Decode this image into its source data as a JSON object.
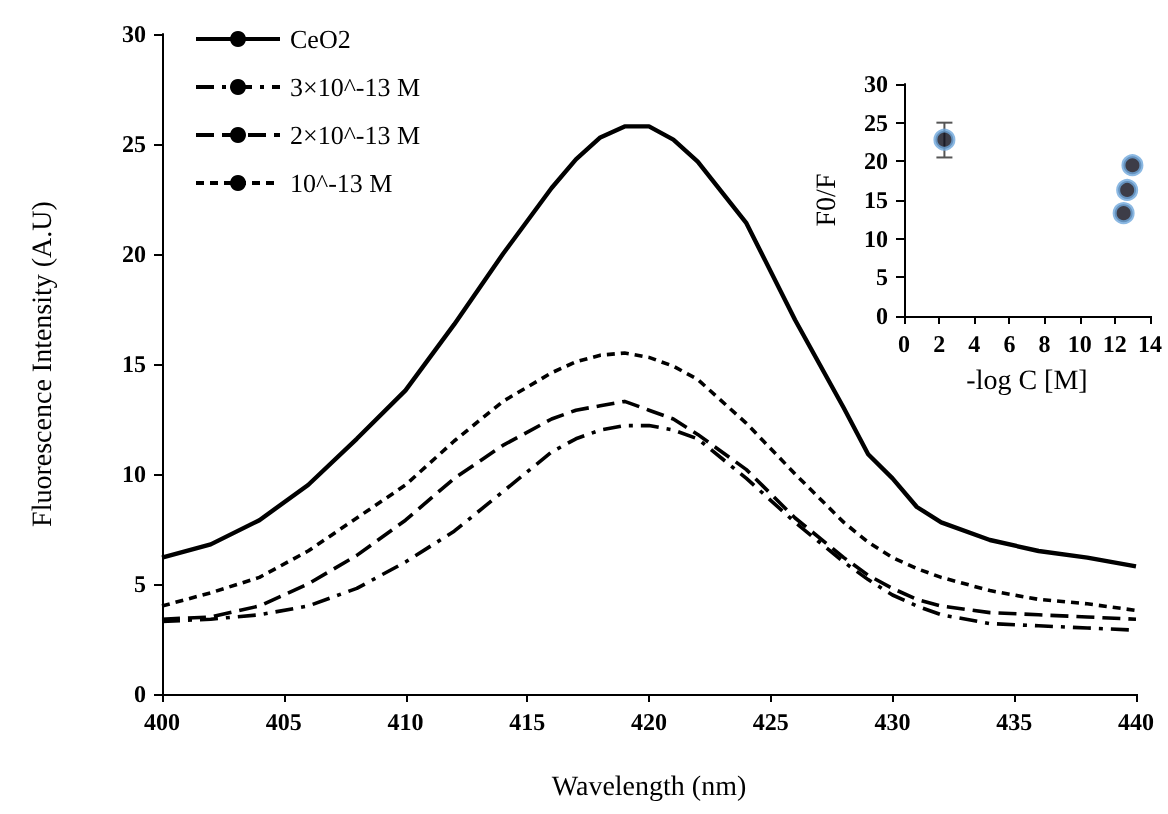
{
  "chart_data": [
    {
      "type": "line",
      "xlabel": "Wavelength (nm)",
      "ylabel": "Fluorescence Intensity (A.U)",
      "xlim": [
        400,
        440
      ],
      "xticks": [
        400,
        405,
        410,
        415,
        420,
        425,
        430,
        435,
        440
      ],
      "ylim": [
        0,
        30
      ],
      "yticks": [
        0,
        5,
        10,
        15,
        20,
        25,
        30
      ],
      "x": [
        400,
        402,
        404,
        406,
        408,
        410,
        412,
        414,
        416,
        417,
        418,
        419,
        420,
        421,
        422,
        424,
        426,
        428,
        429,
        430,
        431,
        432,
        434,
        436,
        438,
        440
      ],
      "series": [
        {
          "name": "CeO2",
          "color": "#000000",
          "line_style": "solid",
          "values": [
            6.2,
            6.8,
            7.9,
            9.5,
            11.6,
            13.8,
            16.8,
            20.0,
            23.0,
            24.3,
            25.3,
            25.8,
            25.8,
            25.2,
            24.2,
            21.4,
            17.0,
            13.0,
            10.9,
            9.8,
            8.5,
            7.8,
            7.0,
            6.5,
            6.2,
            5.8
          ]
        },
        {
          "name": "3×10^-13 M",
          "color": "#000000",
          "line_style": "dashdot",
          "values": [
            3.3,
            3.4,
            3.6,
            4.0,
            4.8,
            6.0,
            7.4,
            9.2,
            11.0,
            11.6,
            12.0,
            12.2,
            12.2,
            12.0,
            11.6,
            9.8,
            7.8,
            6.0,
            5.2,
            4.5,
            4.0,
            3.6,
            3.2,
            3.1,
            3.0,
            2.9
          ]
        },
        {
          "name": "2×10^-13 M",
          "color": "#000000",
          "line_style": "dashed",
          "values": [
            3.4,
            3.5,
            4.0,
            5.0,
            6.3,
            7.9,
            9.8,
            11.3,
            12.5,
            12.9,
            13.1,
            13.3,
            12.9,
            12.5,
            11.8,
            10.2,
            8.0,
            6.2,
            5.4,
            4.8,
            4.3,
            4.0,
            3.7,
            3.6,
            3.5,
            3.4
          ]
        },
        {
          "name": "10^-13 M",
          "color": "#000000",
          "line_style": "dotted",
          "values": [
            4.0,
            4.6,
            5.3,
            6.5,
            8.0,
            9.5,
            11.5,
            13.3,
            14.6,
            15.1,
            15.4,
            15.5,
            15.3,
            14.9,
            14.3,
            12.3,
            10.0,
            7.8,
            6.9,
            6.2,
            5.7,
            5.3,
            4.7,
            4.3,
            4.1,
            3.8
          ]
        }
      ],
      "marker": "none",
      "grid": false,
      "legend": "top left"
    },
    {
      "type": "scatter",
      "xlabel": "-log C [M]",
      "ylabel": "F0/F",
      "xlim": [
        0,
        14
      ],
      "xticks": [
        0,
        2,
        4,
        6,
        8,
        10,
        12,
        14
      ],
      "ylim": [
        0,
        30
      ],
      "yticks": [
        0,
        5,
        10,
        15,
        20,
        25,
        30
      ],
      "x": [
        2.3,
        12.5,
        12.7,
        13.0
      ],
      "values": [
        22.8,
        13.3,
        16.3,
        19.5
      ],
      "errors": [
        [
          20.5,
          25.0
        ],
        null,
        null,
        null
      ],
      "color": "#0d0d1a",
      "marker": "circle",
      "grid": false,
      "legend": false
    }
  ]
}
